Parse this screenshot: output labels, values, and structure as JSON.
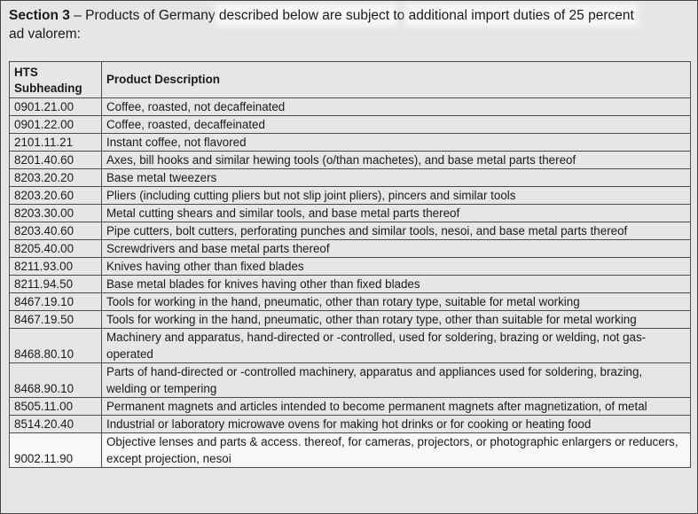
{
  "intro": {
    "section_label": "Section 3",
    "text_part1": " – Products of Germany ",
    "text_part2": "described below are subject ",
    "text_part3": "to ",
    "text_part4": "additional import duties of 25 percent",
    "text_line2": "ad valorem:"
  },
  "table": {
    "headers": {
      "hts_line1": "HTS",
      "hts_line2": "Subheading",
      "description": "Product Description"
    },
    "rows": [
      {
        "code": "0901.21.00",
        "desc": "Coffee, roasted, not decaffeinated"
      },
      {
        "code": "0901.22.00",
        "desc": "Coffee, roasted, decaffeinated"
      },
      {
        "code": "2101.11.21",
        "desc": "Instant coffee, not flavored"
      },
      {
        "code": "8201.40.60",
        "desc": "Axes, bill hooks and similar hewing tools (o/than machetes), and base metal parts thereof"
      },
      {
        "code": "8203.20.20",
        "desc": "Base metal tweezers"
      },
      {
        "code": "8203.20.60",
        "desc": "Pliers (including cutting pliers but not slip joint pliers), pincers and similar tools"
      },
      {
        "code": "8203.30.00",
        "desc": "Metal cutting shears and similar tools, and base metal parts thereof"
      },
      {
        "code": "8203.40.60",
        "desc": "Pipe cutters, bolt cutters, perforating punches and similar tools, nesoi, and base metal parts thereof"
      },
      {
        "code": "8205.40.00",
        "desc": "Screwdrivers and base metal parts thereof"
      },
      {
        "code": "8211.93.00",
        "desc": "Knives having other than fixed blades"
      },
      {
        "code": "8211.94.50",
        "desc": "Base metal blades for knives having other than fixed blades"
      },
      {
        "code": "8467.19.10",
        "desc": "Tools for working in the hand, pneumatic, other than rotary type, suitable for metal working"
      },
      {
        "code": "8467.19.50",
        "desc": "Tools for working in the hand, pneumatic, other than rotary type, other than suitable for metal working"
      },
      {
        "code": "8468.80.10",
        "desc": "Machinery and apparatus, hand-directed or -controlled, used for soldering, brazing or welding, not gas-operated"
      },
      {
        "code": "8468.90.10",
        "desc": "Parts of hand-directed or -controlled machinery, apparatus and appliances used for soldering, brazing, welding or tempering"
      },
      {
        "code": "8505.11.00",
        "desc": "Permanent magnets and articles intended to become permanent magnets after magnetization, of metal"
      },
      {
        "code": "8514.20.40",
        "desc": "Industrial or laboratory microwave ovens for making hot drinks or for cooking or heating food"
      },
      {
        "code": "9002.11.90",
        "desc": "Objective lenses and parts & access. thereof, for cameras, projectors, or photographic enlargers or reducers, except projection, nesoi"
      }
    ]
  }
}
